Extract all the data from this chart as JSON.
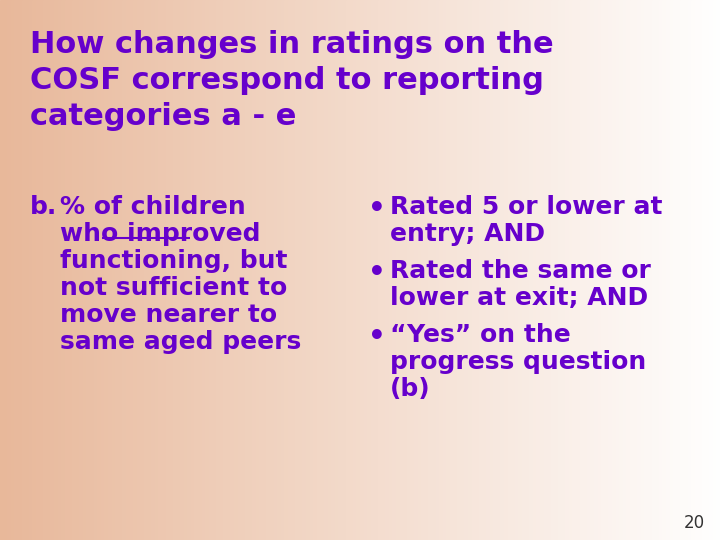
{
  "title_line1": "How changes in ratings on the",
  "title_line2": "COSF correspond to reporting",
  "title_line3": "categories a - e",
  "title_color": "#6600CC",
  "title_fontsize": 22,
  "left_label": "b.",
  "left_text_lines": [
    "% of children",
    "who improved",
    "functioning, but",
    "not sufficient to",
    "move nearer to",
    "same aged peers"
  ],
  "right_bullets": [
    "Rated 5 or lower at\nentry; AND",
    "Rated the same or\nlower at exit; AND",
    "“Yes” on the\nprogress question\n(b)"
  ],
  "body_fontsize": 18,
  "body_color": "#6600CC",
  "bg_color_left": "#E8B89A",
  "bg_color_right": "#FFFFFF",
  "page_number": "20",
  "page_number_color": "#333333",
  "page_number_fontsize": 12
}
